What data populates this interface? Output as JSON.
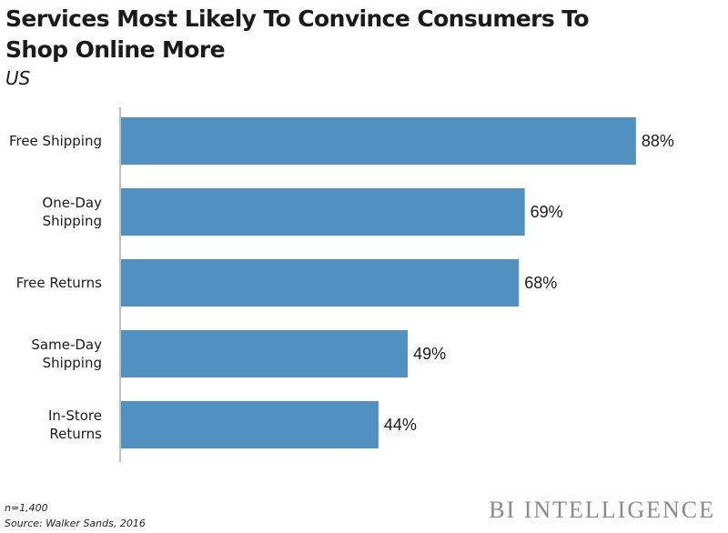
{
  "chart_data": {
    "type": "bar",
    "orientation": "horizontal",
    "title": "Services Most Likely To Convince Consumers To Shop Online More",
    "subtitle": "US",
    "categories": [
      [
        "Free Shipping"
      ],
      [
        "One-Day",
        "Shipping"
      ],
      [
        "Free Returns"
      ],
      [
        "Same-Day",
        "Shipping"
      ],
      [
        "In-Store",
        "Returns"
      ]
    ],
    "values": [
      88,
      69,
      68,
      49,
      44
    ],
    "value_labels": [
      "88%",
      "69%",
      "68%",
      "49%",
      "44%"
    ],
    "xlim": [
      0,
      100
    ],
    "xlabel": "",
    "ylabel": "",
    "bar_color": "#5191c2",
    "axis_color": "#808080"
  },
  "footer": {
    "sample": "n=1,400",
    "source": "Source: Walker Sands, 2016",
    "brand": "BI INTELLIGENCE"
  }
}
